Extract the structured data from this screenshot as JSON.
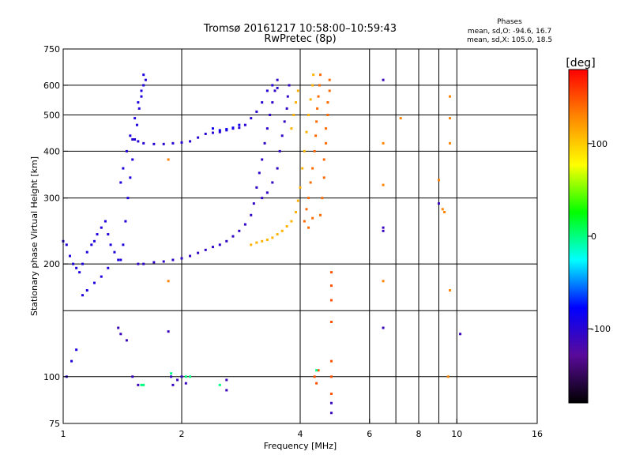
{
  "chart_data": {
    "type": "scatter",
    "title": "Tromsø 20161217 10:58:00–10:59:43",
    "subtitle": "RwPretec (8p)",
    "xlabel": "Frequency [MHz]",
    "ylabel": "Stationary phase Virtual Height [km]",
    "x_scale": "log",
    "y_scale": "log",
    "xlim": [
      1,
      16
    ],
    "ylim": [
      75,
      750
    ],
    "x_ticks": [
      1,
      2,
      4,
      6,
      8,
      10,
      16
    ],
    "x_ticks_minor": [
      7,
      9
    ],
    "y_ticks": [
      75,
      100,
      200,
      300,
      400,
      500,
      600,
      750
    ],
    "y_ticks_minor": [
      150
    ],
    "grid": true,
    "stats": {
      "header": "Phases",
      "line_o": "mean, sd,O: -94.6, 16.7",
      "line_x": "mean, sd,X: 105.0, 18.5"
    },
    "colorbar": {
      "label": "[deg]",
      "range": [
        -180,
        180
      ],
      "ticks": [
        100,
        0,
        -100
      ],
      "gradient": [
        "#000000",
        "#5a0a9a",
        "#0000ff",
        "#00ffff",
        "#00ff00",
        "#ffff00",
        "#ff8800",
        "#ff0000"
      ]
    },
    "series": [
      {
        "phase": -95,
        "points": [
          [
            1.0,
            230
          ],
          [
            1.02,
            225
          ],
          [
            1.04,
            210
          ],
          [
            1.06,
            200
          ],
          [
            1.08,
            195
          ],
          [
            1.1,
            190
          ],
          [
            1.12,
            200
          ],
          [
            1.15,
            215
          ],
          [
            1.18,
            225
          ],
          [
            1.2,
            230
          ],
          [
            1.22,
            240
          ],
          [
            1.25,
            250
          ],
          [
            1.28,
            260
          ],
          [
            1.3,
            240
          ],
          [
            1.32,
            225
          ],
          [
            1.35,
            215
          ],
          [
            1.38,
            205
          ],
          [
            1.4,
            205
          ],
          [
            1.42,
            225
          ],
          [
            1.44,
            260
          ],
          [
            1.46,
            300
          ],
          [
            1.48,
            340
          ],
          [
            1.5,
            380
          ],
          [
            1.52,
            430
          ],
          [
            1.54,
            470
          ],
          [
            1.56,
            520
          ],
          [
            1.58,
            560
          ],
          [
            1.6,
            600
          ],
          [
            1.6,
            640
          ],
          [
            1.62,
            620
          ],
          [
            1.58,
            580
          ],
          [
            1.55,
            540
          ],
          [
            1.52,
            490
          ],
          [
            1.48,
            440
          ],
          [
            1.45,
            400
          ],
          [
            1.42,
            360
          ],
          [
            1.4,
            330
          ],
          [
            1.12,
            165
          ],
          [
            1.15,
            170
          ],
          [
            1.2,
            178
          ],
          [
            1.25,
            185
          ],
          [
            1.3,
            195
          ],
          [
            1.02,
            100
          ],
          [
            1.05,
            110
          ],
          [
            1.08,
            118
          ]
        ]
      },
      {
        "phase": -100,
        "points": [
          [
            1.5,
            430
          ],
          [
            1.55,
            425
          ],
          [
            1.6,
            420
          ],
          [
            1.7,
            418
          ],
          [
            1.8,
            418
          ],
          [
            1.9,
            420
          ],
          [
            2.0,
            422
          ],
          [
            2.1,
            425
          ],
          [
            2.2,
            435
          ],
          [
            2.3,
            445
          ],
          [
            2.4,
            448
          ],
          [
            2.5,
            450
          ],
          [
            2.6,
            455
          ],
          [
            2.7,
            460
          ],
          [
            2.8,
            462
          ],
          [
            2.9,
            470
          ],
          [
            3.0,
            490
          ],
          [
            3.1,
            510
          ],
          [
            3.2,
            540
          ],
          [
            3.3,
            580
          ],
          [
            3.4,
            600
          ],
          [
            3.5,
            590
          ]
        ]
      },
      {
        "phase": -105,
        "points": [
          [
            1.55,
            200
          ],
          [
            1.6,
            200
          ],
          [
            1.7,
            202
          ],
          [
            1.8,
            203
          ],
          [
            1.9,
            205
          ],
          [
            2.0,
            207
          ],
          [
            2.1,
            210
          ],
          [
            2.2,
            214
          ],
          [
            2.3,
            218
          ],
          [
            2.4,
            222
          ],
          [
            2.5,
            225
          ],
          [
            2.6,
            230
          ],
          [
            2.7,
            237
          ],
          [
            2.8,
            245
          ],
          [
            2.9,
            255
          ],
          [
            3.0,
            270
          ],
          [
            3.05,
            290
          ],
          [
            3.1,
            320
          ],
          [
            3.15,
            350
          ],
          [
            3.2,
            380
          ],
          [
            3.25,
            420
          ],
          [
            3.3,
            460
          ],
          [
            3.35,
            500
          ],
          [
            3.4,
            540
          ],
          [
            3.45,
            580
          ],
          [
            3.5,
            620
          ],
          [
            3.2,
            300
          ],
          [
            3.3,
            310
          ],
          [
            3.4,
            330
          ],
          [
            3.5,
            360
          ],
          [
            3.55,
            400
          ],
          [
            3.6,
            440
          ],
          [
            3.65,
            480
          ],
          [
            3.7,
            520
          ],
          [
            3.72,
            560
          ],
          [
            3.75,
            600
          ]
        ]
      },
      {
        "phase": -85,
        "points": [
          [
            2.4,
            460
          ],
          [
            2.5,
            455
          ],
          [
            2.6,
            458
          ],
          [
            2.7,
            462
          ],
          [
            2.8,
            470
          ]
        ]
      },
      {
        "phase": 110,
        "points": [
          [
            3.0,
            225
          ],
          [
            3.1,
            228
          ],
          [
            3.2,
            230
          ],
          [
            3.3,
            232
          ],
          [
            3.4,
            235
          ],
          [
            3.5,
            240
          ],
          [
            3.6,
            245
          ],
          [
            3.7,
            252
          ],
          [
            3.8,
            260
          ],
          [
            3.9,
            275
          ],
          [
            3.95,
            295
          ],
          [
            4.0,
            320
          ],
          [
            4.05,
            360
          ],
          [
            4.1,
            400
          ],
          [
            4.15,
            450
          ],
          [
            4.2,
            500
          ],
          [
            4.25,
            550
          ],
          [
            4.3,
            600
          ],
          [
            4.32,
            640
          ],
          [
            3.8,
            460
          ],
          [
            3.85,
            500
          ],
          [
            3.9,
            540
          ],
          [
            3.95,
            580
          ]
        ]
      },
      {
        "phase": 140,
        "points": [
          [
            4.1,
            260
          ],
          [
            4.15,
            280
          ],
          [
            4.2,
            300
          ],
          [
            4.25,
            330
          ],
          [
            4.3,
            360
          ],
          [
            4.35,
            400
          ],
          [
            4.38,
            440
          ],
          [
            4.4,
            480
          ],
          [
            4.42,
            520
          ],
          [
            4.45,
            560
          ],
          [
            4.48,
            600
          ],
          [
            4.5,
            640
          ],
          [
            4.2,
            250
          ],
          [
            4.3,
            265
          ],
          [
            4.5,
            270
          ],
          [
            4.55,
            300
          ],
          [
            4.6,
            340
          ],
          [
            4.6,
            380
          ],
          [
            4.65,
            420
          ],
          [
            4.65,
            460
          ],
          [
            4.7,
            500
          ],
          [
            4.7,
            540
          ],
          [
            4.75,
            580
          ],
          [
            4.75,
            620
          ]
        ]
      },
      {
        "phase": 150,
        "points": [
          [
            4.35,
            100
          ],
          [
            4.4,
            96
          ],
          [
            4.45,
            104
          ],
          [
            4.8,
            90
          ],
          [
            4.8,
            100
          ],
          [
            4.8,
            110
          ],
          [
            4.8,
            140
          ],
          [
            4.8,
            160
          ],
          [
            4.8,
            175
          ],
          [
            4.8,
            190
          ]
        ]
      },
      {
        "phase": -110,
        "points": [
          [
            1.38,
            135
          ],
          [
            1.4,
            130
          ],
          [
            1.45,
            125
          ],
          [
            1.5,
            100
          ],
          [
            1.55,
            95
          ],
          [
            1.85,
            132
          ],
          [
            1.88,
            100
          ],
          [
            1.9,
            95
          ],
          [
            1.95,
            98
          ],
          [
            2.0,
            100
          ],
          [
            2.05,
            96
          ],
          [
            2.6,
            92
          ],
          [
            2.6,
            98
          ],
          [
            4.8,
            85
          ],
          [
            4.8,
            80
          ],
          [
            6.5,
            135
          ],
          [
            6.5,
            620
          ],
          [
            6.5,
            250
          ],
          [
            6.5,
            245
          ],
          [
            9.0,
            290
          ],
          [
            10.2,
            130
          ]
        ]
      },
      {
        "phase": 130,
        "points": [
          [
            1.85,
            180
          ],
          [
            1.85,
            380
          ],
          [
            6.5,
            420
          ],
          [
            6.5,
            325
          ],
          [
            7.2,
            490
          ],
          [
            9.0,
            335
          ],
          [
            9.2,
            280
          ],
          [
            9.3,
            275
          ],
          [
            9.6,
            560
          ],
          [
            9.6,
            490
          ],
          [
            9.6,
            420
          ],
          [
            9.6,
            170
          ],
          [
            9.5,
            100
          ],
          [
            6.5,
            180
          ]
        ]
      },
      {
        "phase": 0,
        "points": [
          [
            1.88,
            102
          ],
          [
            2.05,
            100
          ],
          [
            2.1,
            100
          ],
          [
            1.6,
            95
          ],
          [
            1.58,
            95
          ],
          [
            2.5,
            95
          ],
          [
            4.4,
            104
          ]
        ]
      }
    ]
  }
}
